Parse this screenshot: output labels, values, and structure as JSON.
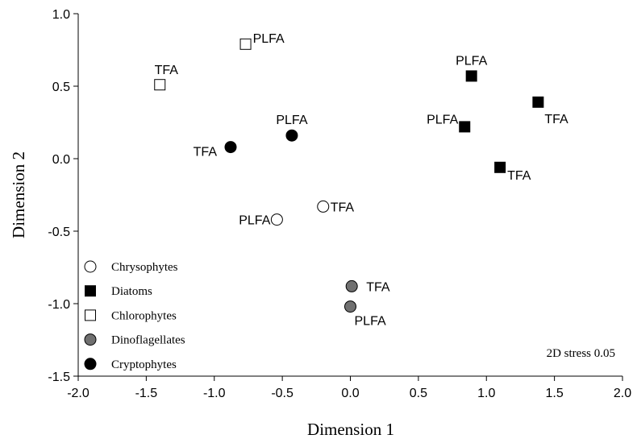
{
  "chart_data": {
    "type": "scatter",
    "x_label": "Dimension 1",
    "y_label": "Dimension 2",
    "annotation": "2D stress 0.05",
    "xlim": [
      -2.0,
      2.0
    ],
    "xticks": [
      {
        "value": -2.0,
        "label": "-2.0"
      },
      -1.5,
      {
        "value": -1.0,
        "label": "-1.0"
      },
      -0.5,
      {
        "value": 0.0,
        "label": "0.0"
      },
      0.5,
      {
        "value": 1.0,
        "label": "1.0"
      },
      1.5,
      {
        "value": 2.0,
        "label": "2.0"
      }
    ],
    "ylim": [
      -1.5,
      1.0
    ],
    "yticks": [
      -1.5,
      {
        "value": -1.0,
        "label": "-1.0"
      },
      -0.5,
      {
        "value": 0.0,
        "label": "0.0"
      },
      0.5,
      {
        "value": 1.0,
        "label": "1.0"
      }
    ],
    "legend": "lower left",
    "series": [
      {
        "name": "Chrysophytes",
        "marker": "circle",
        "color": "#ffffff",
        "x": [
          -0.2,
          -0.54
        ],
        "y": [
          -0.33,
          -0.42
        ],
        "labels": [
          "TFA",
          "PLFA"
        ]
      },
      {
        "name": "Diatoms",
        "marker": "square",
        "color": "#000000",
        "x": [
          0.89,
          1.38,
          0.84,
          1.1
        ],
        "y": [
          0.57,
          0.39,
          0.22,
          -0.06
        ],
        "labels": [
          "PLFA",
          "TFA",
          "PLFA",
          "TFA"
        ]
      },
      {
        "name": "Chlorophytes",
        "marker": "square",
        "color": "#ffffff",
        "x": [
          -0.77,
          -1.4
        ],
        "y": [
          0.79,
          0.51
        ],
        "labels": [
          "PLFA",
          "TFA"
        ]
      },
      {
        "name": "Dinoflagellates",
        "marker": "circle",
        "color": "#707070",
        "x": [
          0.01,
          0.0
        ],
        "y": [
          -0.88,
          -1.02
        ],
        "labels": [
          "TFA",
          "PLFA"
        ]
      },
      {
        "name": "Cryptophytes",
        "marker": "circle",
        "color": "#000000",
        "x": [
          -0.88,
          -0.43
        ],
        "y": [
          0.08,
          0.16
        ],
        "labels": [
          "TFA",
          "PLFA"
        ]
      }
    ]
  }
}
